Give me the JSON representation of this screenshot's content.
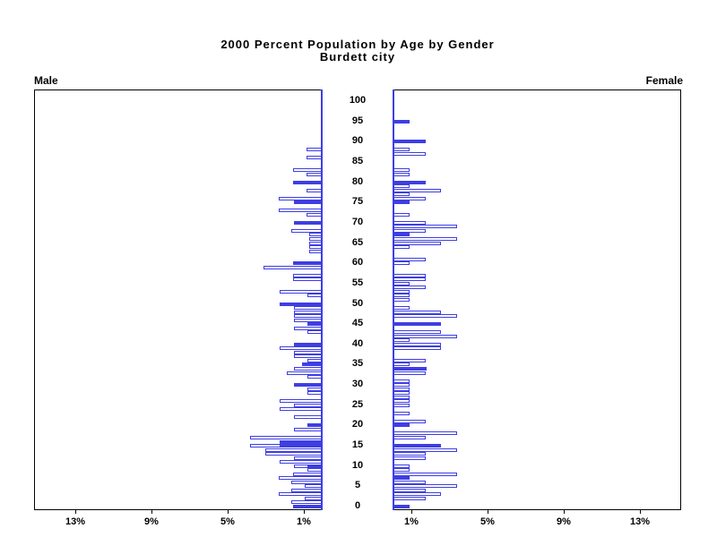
{
  "title": {
    "line1": "2000 Percent Population by Age by Gender",
    "line2": "Burdett city"
  },
  "panel_labels": {
    "male": "Male",
    "female": "Female"
  },
  "chart_data": {
    "type": "bar",
    "subtype": "population-pyramid",
    "title": "2000 Percent Population by Age by Gender",
    "subtitle": "Burdett city",
    "unit": "percent",
    "bar_color": "#3e3ee4",
    "bar_styles": {
      "o": "white fill with blue outline (single year of age)",
      "f": "solid blue fill"
    },
    "xlim": [
      0,
      15.2
    ],
    "x_tick_percents": [
      1,
      5,
      9,
      13
    ],
    "x_tick_labels_male": [
      "13%",
      "9%",
      "5%",
      "1%"
    ],
    "x_tick_labels_female": [
      "1%",
      "5%",
      "9%",
      "13%"
    ],
    "age_axis_ticks": [
      0,
      5,
      10,
      15,
      20,
      25,
      30,
      35,
      40,
      45,
      50,
      55,
      60,
      65,
      70,
      75,
      80,
      85,
      90,
      95,
      100
    ],
    "series": {
      "male": [
        [
          0,
          1.55,
          "f"
        ],
        [
          1,
          1.65,
          "o"
        ],
        [
          2,
          0.95,
          "o"
        ],
        [
          3,
          2.3,
          "o"
        ],
        [
          4,
          1.65,
          "o"
        ],
        [
          5,
          0.95,
          "o"
        ],
        [
          6,
          1.65,
          "o"
        ],
        [
          7,
          2.3,
          "o"
        ],
        [
          8,
          1.55,
          "o"
        ],
        [
          9,
          0.8,
          "o"
        ],
        [
          10,
          1.5,
          "o"
        ],
        [
          10,
          0.8,
          "f"
        ],
        [
          11,
          2.25,
          "o"
        ],
        [
          12,
          1.5,
          "o"
        ],
        [
          13,
          3.0,
          "o"
        ],
        [
          14,
          3.0,
          "o"
        ],
        [
          15,
          3.8,
          "o"
        ],
        [
          15,
          2.25,
          "f"
        ],
        [
          16,
          2.25,
          "f"
        ],
        [
          17,
          3.8,
          "o"
        ],
        [
          19,
          1.5,
          "o"
        ],
        [
          20,
          0.8,
          "f"
        ],
        [
          22,
          1.5,
          "o"
        ],
        [
          24,
          2.25,
          "o"
        ],
        [
          25,
          1.5,
          "o"
        ],
        [
          26,
          2.25,
          "o"
        ],
        [
          28,
          0.8,
          "o"
        ],
        [
          29,
          0.8,
          "o"
        ],
        [
          30,
          1.5,
          "f"
        ],
        [
          32,
          0.8,
          "o"
        ],
        [
          33,
          1.9,
          "o"
        ],
        [
          34,
          1.5,
          "o"
        ],
        [
          35,
          1.1,
          "f"
        ],
        [
          36,
          0.8,
          "o"
        ],
        [
          37,
          1.5,
          "o"
        ],
        [
          38,
          1.5,
          "o"
        ],
        [
          39,
          2.25,
          "o"
        ],
        [
          40,
          1.5,
          "f"
        ],
        [
          43,
          0.8,
          "o"
        ],
        [
          44,
          1.5,
          "o"
        ],
        [
          45,
          0.8,
          "f"
        ],
        [
          46,
          1.5,
          "o"
        ],
        [
          47,
          1.5,
          "o"
        ],
        [
          48,
          1.5,
          "o"
        ],
        [
          49,
          1.5,
          "o"
        ],
        [
          50,
          2.25,
          "f"
        ],
        [
          52,
          0.8,
          "o"
        ],
        [
          53,
          2.25,
          "o"
        ],
        [
          56,
          1.55,
          "o"
        ],
        [
          57,
          1.55,
          "o"
        ],
        [
          59,
          3.1,
          "o"
        ],
        [
          60,
          1.55,
          "f"
        ],
        [
          63,
          0.7,
          "o"
        ],
        [
          64,
          0.7,
          "o"
        ],
        [
          65,
          0.7,
          "o"
        ],
        [
          66,
          0.7,
          "o"
        ],
        [
          67,
          0.7,
          "o"
        ],
        [
          68,
          1.65,
          "o"
        ],
        [
          70,
          1.5,
          "f"
        ],
        [
          72,
          0.85,
          "o"
        ],
        [
          73,
          2.3,
          "o"
        ],
        [
          75,
          1.5,
          "f"
        ],
        [
          76,
          2.3,
          "o"
        ],
        [
          78,
          0.85,
          "o"
        ],
        [
          80,
          1.55,
          "f"
        ],
        [
          82,
          0.85,
          "o"
        ],
        [
          83,
          1.55,
          "o"
        ],
        [
          86,
          0.85,
          "o"
        ],
        [
          88,
          0.85,
          "o"
        ]
      ],
      "female": [
        [
          0,
          0.9,
          "f"
        ],
        [
          2,
          1.75,
          "o"
        ],
        [
          3,
          2.55,
          "o"
        ],
        [
          4,
          1.75,
          "o"
        ],
        [
          5,
          3.4,
          "o"
        ],
        [
          6,
          1.75,
          "o"
        ],
        [
          7,
          0.9,
          "f"
        ],
        [
          8,
          3.4,
          "o"
        ],
        [
          9,
          0.9,
          "o"
        ],
        [
          10,
          0.9,
          "o"
        ],
        [
          12,
          1.75,
          "o"
        ],
        [
          13,
          1.75,
          "o"
        ],
        [
          14,
          3.4,
          "o"
        ],
        [
          15,
          2.55,
          "f"
        ],
        [
          17,
          1.75,
          "o"
        ],
        [
          18,
          3.4,
          "o"
        ],
        [
          20,
          0.9,
          "f"
        ],
        [
          21,
          1.75,
          "o"
        ],
        [
          23,
          0.9,
          "o"
        ],
        [
          25,
          0.9,
          "o"
        ],
        [
          26,
          0.9,
          "o"
        ],
        [
          27,
          0.9,
          "o"
        ],
        [
          28,
          0.9,
          "o"
        ],
        [
          29,
          0.9,
          "o"
        ],
        [
          30,
          0.9,
          "o"
        ],
        [
          31,
          0.9,
          "o"
        ],
        [
          33,
          1.75,
          "o"
        ],
        [
          34,
          1.8,
          "f"
        ],
        [
          35,
          0.9,
          "o"
        ],
        [
          36,
          1.75,
          "o"
        ],
        [
          39,
          2.55,
          "o"
        ],
        [
          40,
          2.55,
          "o"
        ],
        [
          41,
          0.9,
          "o"
        ],
        [
          42,
          3.4,
          "o"
        ],
        [
          43,
          2.55,
          "o"
        ],
        [
          45,
          2.55,
          "f"
        ],
        [
          47,
          3.4,
          "o"
        ],
        [
          48,
          2.55,
          "o"
        ],
        [
          49,
          0.9,
          "o"
        ],
        [
          51,
          0.9,
          "o"
        ],
        [
          52,
          0.9,
          "o"
        ],
        [
          53,
          0.9,
          "o"
        ],
        [
          54,
          1.75,
          "o"
        ],
        [
          55,
          0.9,
          "o"
        ],
        [
          56,
          1.75,
          "o"
        ],
        [
          57,
          1.75,
          "o"
        ],
        [
          60,
          0.9,
          "o"
        ],
        [
          61,
          1.75,
          "o"
        ],
        [
          64,
          0.9,
          "o"
        ],
        [
          65,
          2.55,
          "o"
        ],
        [
          66,
          3.4,
          "o"
        ],
        [
          67,
          0.9,
          "f"
        ],
        [
          68,
          1.75,
          "o"
        ],
        [
          69,
          3.4,
          "o"
        ],
        [
          70,
          1.75,
          "o"
        ],
        [
          72,
          0.9,
          "o"
        ],
        [
          75,
          0.9,
          "f"
        ],
        [
          76,
          1.75,
          "o"
        ],
        [
          77,
          0.9,
          "o"
        ],
        [
          78,
          2.55,
          "o"
        ],
        [
          79,
          0.9,
          "o"
        ],
        [
          80,
          1.75,
          "f"
        ],
        [
          82,
          0.9,
          "o"
        ],
        [
          83,
          0.9,
          "o"
        ],
        [
          87,
          1.75,
          "o"
        ],
        [
          88,
          0.9,
          "o"
        ],
        [
          90,
          1.75,
          "f"
        ],
        [
          95,
          0.9,
          "f"
        ]
      ]
    }
  }
}
